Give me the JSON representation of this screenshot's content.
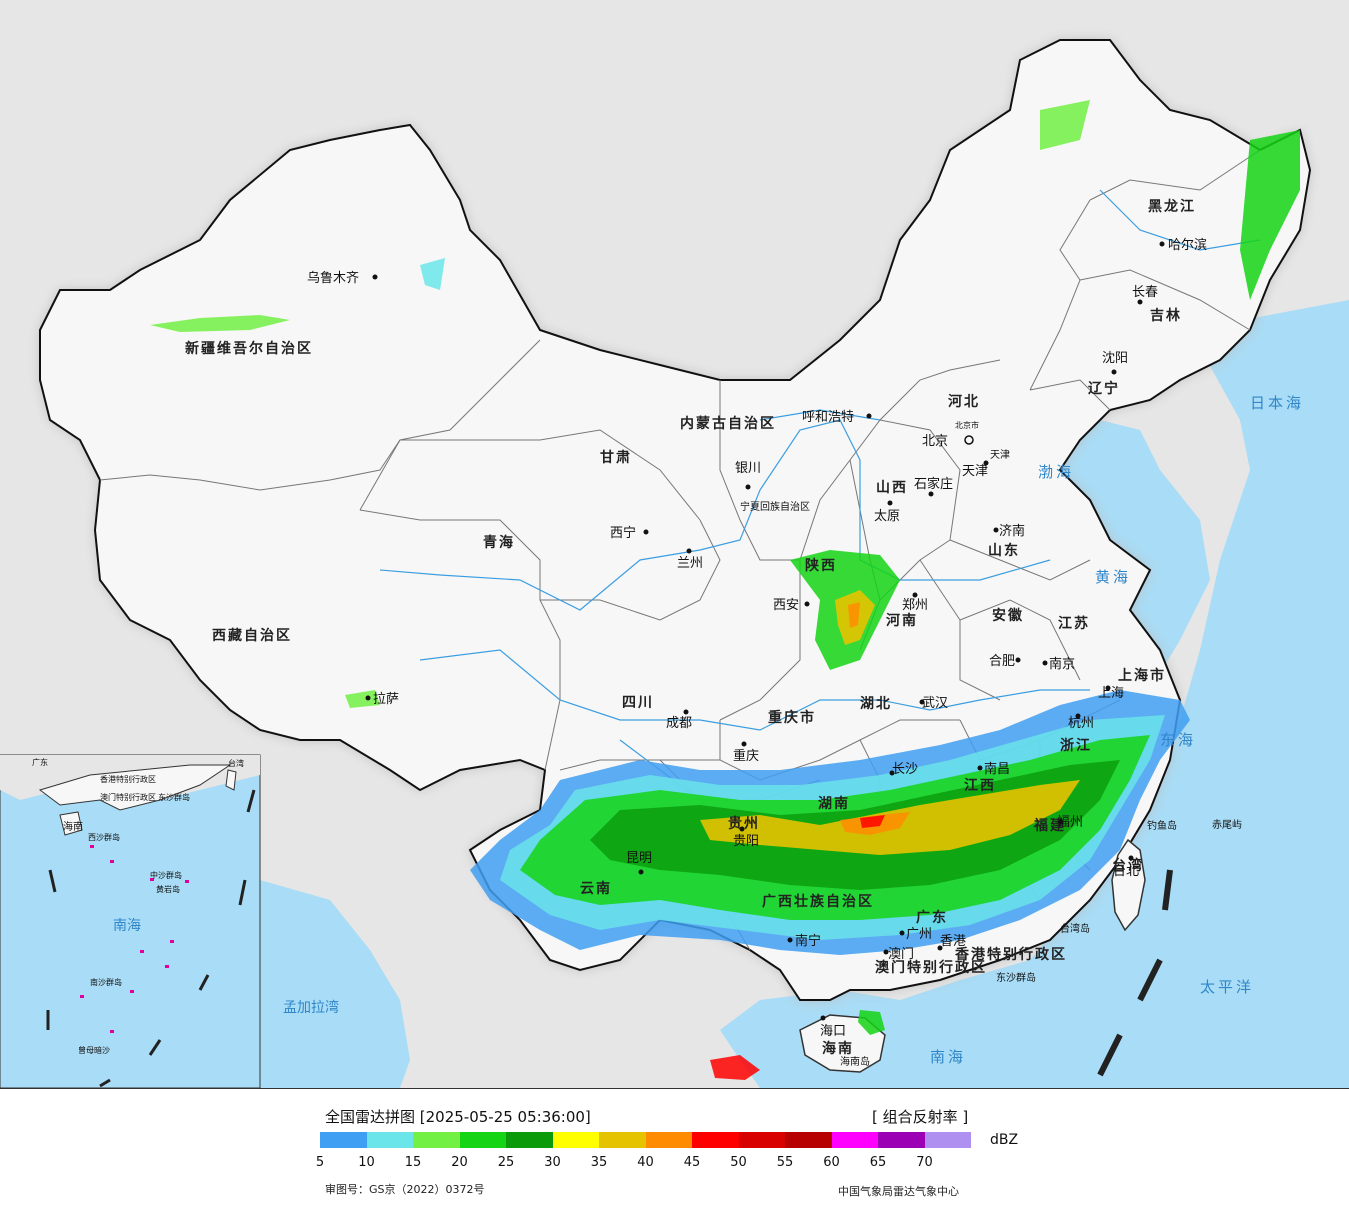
{
  "map": {
    "provinces": [
      {
        "name": "新疆维吾尔自治区"
      },
      {
        "name": "西藏自治区"
      },
      {
        "name": "青海"
      },
      {
        "name": "甘肃"
      },
      {
        "name": "四川"
      },
      {
        "name": "云南"
      },
      {
        "name": "内蒙古自治区"
      },
      {
        "name": "宁夏回族自治区"
      },
      {
        "name": "陕西"
      },
      {
        "name": "山西"
      },
      {
        "name": "河北"
      },
      {
        "name": "河南"
      },
      {
        "name": "山东"
      },
      {
        "name": "黑龙江"
      },
      {
        "name": "吉林"
      },
      {
        "name": "辽宁"
      },
      {
        "name": "重庆市"
      },
      {
        "name": "贵州"
      },
      {
        "name": "湖北"
      },
      {
        "name": "湖南"
      },
      {
        "name": "江西"
      },
      {
        "name": "安徽"
      },
      {
        "name": "江苏"
      },
      {
        "name": "浙江"
      },
      {
        "name": "福建"
      },
      {
        "name": "广东"
      },
      {
        "name": "广西壮族自治区"
      },
      {
        "name": "海南"
      },
      {
        "name": "台湾"
      },
      {
        "name": "上海市"
      },
      {
        "name": "北京市"
      },
      {
        "name": "天津"
      },
      {
        "name": "香港特别行政区"
      },
      {
        "name": "澳门特别行政区"
      }
    ],
    "cities": [
      {
        "name": "乌鲁木齐"
      },
      {
        "name": "拉萨"
      },
      {
        "name": "西宁"
      },
      {
        "name": "兰州"
      },
      {
        "name": "银川"
      },
      {
        "name": "成都"
      },
      {
        "name": "昆明"
      },
      {
        "name": "呼和浩特"
      },
      {
        "name": "北京"
      },
      {
        "name": "天津"
      },
      {
        "name": "石家庄"
      },
      {
        "name": "太原"
      },
      {
        "name": "济南"
      },
      {
        "name": "郑州"
      },
      {
        "name": "西安"
      },
      {
        "name": "合肥"
      },
      {
        "name": "南京"
      },
      {
        "name": "上海"
      },
      {
        "name": "杭州"
      },
      {
        "name": "武汉"
      },
      {
        "name": "重庆"
      },
      {
        "name": "贵阳"
      },
      {
        "name": "长沙"
      },
      {
        "name": "南昌"
      },
      {
        "name": "福州"
      },
      {
        "name": "南宁"
      },
      {
        "name": "广州"
      },
      {
        "name": "香港"
      },
      {
        "name": "澳门"
      },
      {
        "name": "海口"
      },
      {
        "name": "台北"
      },
      {
        "name": "沈阳"
      },
      {
        "name": "长春"
      },
      {
        "name": "哈尔滨"
      }
    ],
    "seas": [
      {
        "name": "日本海"
      },
      {
        "name": "渤海"
      },
      {
        "name": "黄海"
      },
      {
        "name": "东海"
      },
      {
        "name": "太平洋"
      },
      {
        "name": "南海"
      },
      {
        "name": "孟加拉湾"
      }
    ],
    "islands": [
      {
        "name": "钓鱼岛"
      },
      {
        "name": "赤尾屿"
      },
      {
        "name": "台湾岛"
      },
      {
        "name": "东沙群岛"
      },
      {
        "name": "海南岛"
      }
    ],
    "inset": {
      "labels": [
        "南海",
        "海南",
        "广东",
        "香港特别行政区",
        "澳门特别行政区",
        "东沙群岛",
        "西沙群岛",
        "中沙群岛",
        "黄岩岛",
        "南沙群岛",
        "曾母暗沙",
        "台湾"
      ]
    }
  },
  "legend": {
    "title": "全国雷达拼图 [2025-05-25 05:36:00]",
    "product": "[ 组合反射率 ]",
    "unit": "dBZ",
    "colors": [
      "#3f9ff2",
      "#6ae6ea",
      "#72f044",
      "#14d414",
      "#0a9a0a",
      "#ffff00",
      "#e6c300",
      "#ff8c00",
      "#ff0000",
      "#d90000",
      "#b70000",
      "#ff00ff",
      "#9b00b4",
      "#ad90f0"
    ],
    "ticks": [
      "5",
      "10",
      "15",
      "20",
      "25",
      "30",
      "35",
      "40",
      "45",
      "50",
      "55",
      "60",
      "65",
      "70"
    ],
    "approval": "审图号：GS京（2022）0372号",
    "source": "中国气象局雷达气象中心"
  }
}
